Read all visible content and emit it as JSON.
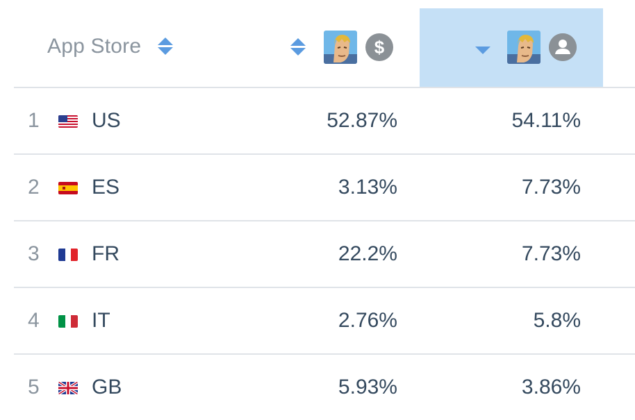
{
  "header": {
    "app_store_label": "App Store",
    "revenue_badge_symbol": "$",
    "downloads_sort": "descending"
  },
  "rows": [
    {
      "rank": "1",
      "country": "US",
      "flag": "flag-us-icon",
      "revenue": "52.87%",
      "downloads": "54.11%"
    },
    {
      "rank": "2",
      "country": "ES",
      "flag": "flag-es-icon",
      "revenue": "3.13%",
      "downloads": "7.73%"
    },
    {
      "rank": "3",
      "country": "FR",
      "flag": "flag-fr-icon",
      "revenue": "22.2%",
      "downloads": "7.73%"
    },
    {
      "rank": "4",
      "country": "IT",
      "flag": "flag-it-icon",
      "revenue": "2.76%",
      "downloads": "5.8%"
    },
    {
      "rank": "5",
      "country": "GB",
      "flag": "flag-gb-icon",
      "revenue": "5.93%",
      "downloads": "3.86%"
    }
  ],
  "colors": {
    "accent": "#5b9be0",
    "selected_column": "#c5e0f6",
    "badge": "#8b9196"
  }
}
